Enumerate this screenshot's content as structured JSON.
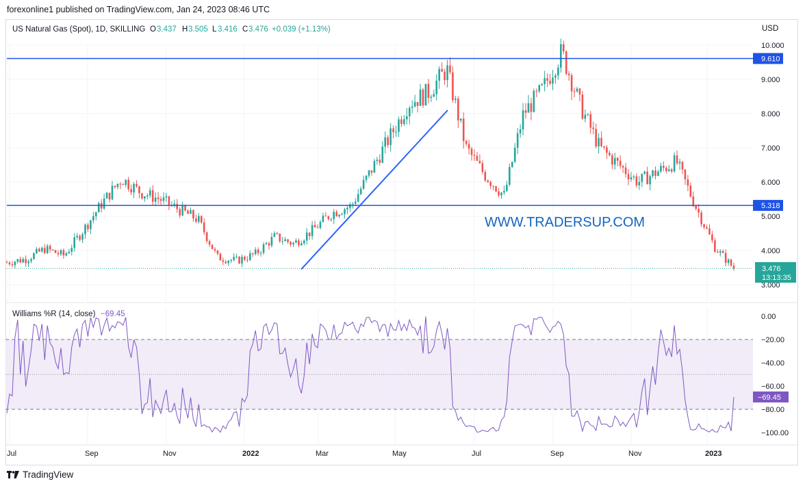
{
  "header": {
    "published": "forexonline1 published on TradingView.com, Jan 24, 2023 08:46 UTC"
  },
  "symbol": {
    "name": "US Natural Gas (Spot), 1D, SKILLING",
    "o_label": "O",
    "o": "3.437",
    "h_label": "H",
    "h": "3.505",
    "l_label": "L",
    "l": "3.416",
    "c_label": "C",
    "c": "3.476",
    "change": "+0.039 (+1.13%)"
  },
  "axis": {
    "currency": "USD"
  },
  "indicator": {
    "name": "Williams %R (14, close)",
    "value": "−69.45"
  },
  "price_badge": {
    "price": "3.476",
    "countdown": "13:13:35"
  },
  "levels": [
    {
      "label": "9.610",
      "value": 9.61
    },
    {
      "label": "5.318",
      "value": 5.318
    }
  ],
  "watermark": "WWW.TRADERSUP.COM",
  "footer": {
    "brand": "TradingView"
  },
  "colors": {
    "up": "#26a69a",
    "down": "#ef5350",
    "level_line": "#1e53e5",
    "trend_line": "#2962ff",
    "williams": "#7e57c2",
    "williams_band": "#ede7f6"
  },
  "chart_data": [
    {
      "type": "candlestick",
      "title": "US Natural Gas (Spot), 1D, SKILLING",
      "ylabel": "USD",
      "ylim": [
        3.0,
        10.0
      ],
      "y_ticks": [
        "3.000",
        "4.000",
        "5.000",
        "6.000",
        "7.000",
        "8.000",
        "9.000",
        "10.000"
      ],
      "x_ticks": [
        "Jul",
        "Sep",
        "Nov",
        "2022",
        "Mar",
        "May",
        "Jul",
        "Sep",
        "Nov",
        "2023"
      ],
      "x": [
        "2021-07",
        "2021-07",
        "2021-08",
        "2021-08",
        "2021-09",
        "2021-09",
        "2021-09",
        "2021-10",
        "2021-10",
        "2021-11",
        "2021-11",
        "2021-12",
        "2021-12",
        "2022-01",
        "2022-01",
        "2022-02",
        "2022-02",
        "2022-03",
        "2022-03",
        "2022-04",
        "2022-04",
        "2022-05",
        "2022-05",
        "2022-06",
        "2022-06",
        "2022-07",
        "2022-07",
        "2022-08",
        "2022-08",
        "2022-09",
        "2022-09",
        "2022-10",
        "2022-10",
        "2022-11",
        "2022-11",
        "2022-12",
        "2022-12",
        "2023-01",
        "2023-01"
      ],
      "close": [
        3.65,
        3.75,
        4.05,
        3.85,
        4.6,
        5.4,
        6.1,
        5.7,
        5.5,
        5.2,
        4.9,
        3.8,
        3.7,
        3.9,
        4.4,
        4.2,
        4.6,
        5.1,
        5.3,
        6.3,
        7.3,
        8.3,
        8.6,
        9.3,
        7.0,
        6.2,
        5.6,
        8.0,
        8.7,
        9.8,
        8.2,
        7.0,
        6.5,
        6.0,
        6.3,
        6.6,
        5.3,
        4.1,
        3.476
      ],
      "levels": [
        9.61,
        5.318
      ],
      "trend_line": {
        "from": [
          [
            "2022-02",
            3.45
          ]
        ],
        "to": [
          [
            "2022-06",
            8.1
          ]
        ]
      }
    },
    {
      "type": "line",
      "title": "Williams %R (14, close)",
      "ylim": [
        -105,
        5
      ],
      "y_ticks": [
        "0.00",
        "−20.00",
        "−40.00",
        "−60.00",
        "−80.00",
        "−100.00"
      ],
      "bands": [
        -20,
        -80
      ],
      "last": -69.45
    }
  ]
}
